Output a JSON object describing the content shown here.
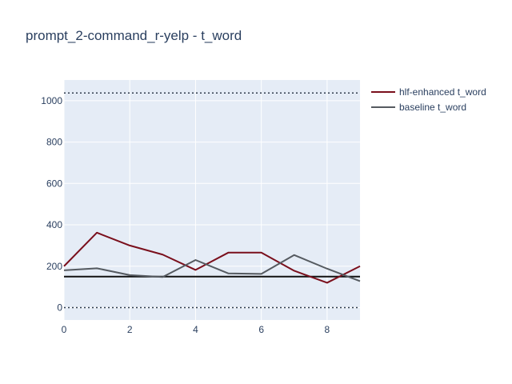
{
  "chart_data": {
    "type": "line",
    "title": "prompt_2-command_r-yelp - t_word",
    "xlabel": "",
    "ylabel": "",
    "xlim": [
      0,
      9
    ],
    "ylim": [
      -60,
      1100
    ],
    "x": [
      0,
      1,
      2,
      3,
      4,
      5,
      6,
      7,
      8,
      9
    ],
    "x_ticks": [
      0,
      2,
      4,
      6,
      8
    ],
    "y_ticks": [
      0,
      200,
      400,
      600,
      800,
      1000
    ],
    "grid": true,
    "legend_position": "top-right",
    "series": [
      {
        "name": "hlf-enhanced t_word",
        "color": "#7a0f1c",
        "values": [
          200,
          362,
          300,
          256,
          182,
          266,
          266,
          178,
          120,
          200
        ]
      },
      {
        "name": "baseline t_word",
        "color": "#555a60",
        "values": [
          180,
          190,
          157,
          148,
          230,
          165,
          163,
          254,
          188,
          128
        ]
      }
    ],
    "reference_lines": [
      {
        "y": 150,
        "style": "solid",
        "color": "#111111"
      },
      {
        "y": 1037,
        "style": "dotted",
        "color": "#2f3b4c"
      },
      {
        "y": 0,
        "style": "dotted",
        "color": "#2f3b4c"
      }
    ],
    "colors": {
      "plot_bg": "#e5ecf6",
      "grid": "#ffffff",
      "text": "#2a3f5f"
    }
  }
}
